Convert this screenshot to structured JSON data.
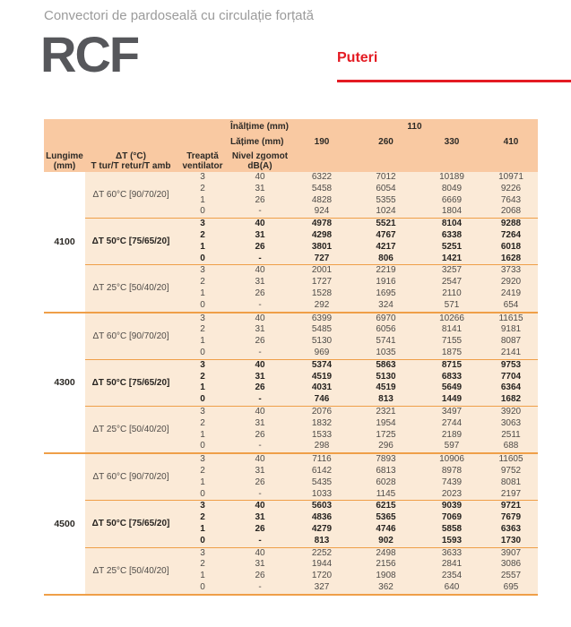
{
  "page": {
    "subtitle": "Convectori de pardoseală cu circulație forțată",
    "product": "RCF",
    "section_label": "Puteri"
  },
  "colors": {
    "accent_red": "#e41b23",
    "header_peach": "#f9c9a2",
    "body_cream": "#fbead7",
    "line_orange": "#ef9f48",
    "title_gray": "#56575b"
  },
  "table": {
    "height_label": "Înălțime (mm)",
    "height_value": "110",
    "width_label": "Lățime (mm)",
    "width_values": [
      "190",
      "260",
      "330",
      "410"
    ],
    "col_headers": {
      "length_line1": "Lungime",
      "length_line2": "(mm)",
      "dt_line1": "ΔT (°C)",
      "dt_line2": "T tur/T retur/T amb",
      "fan_line1": "Treaptă",
      "fan_line2": "ventilator",
      "noise_line1": "Nivel zgomot",
      "noise_line2": "dB(A)"
    },
    "groups": [
      {
        "length": "4100",
        "sections": [
          {
            "label": "ΔT 60°C [90/70/20]",
            "bold": false,
            "rows": [
              {
                "fan": "3",
                "noise": "40",
                "values": [
                  "6322",
                  "7012",
                  "10189",
                  "10971"
                ]
              },
              {
                "fan": "2",
                "noise": "31",
                "values": [
                  "5458",
                  "6054",
                  "8049",
                  "9226"
                ]
              },
              {
                "fan": "1",
                "noise": "26",
                "values": [
                  "4828",
                  "5355",
                  "6669",
                  "7643"
                ]
              },
              {
                "fan": "0",
                "noise": "-",
                "values": [
                  "924",
                  "1024",
                  "1804",
                  "2068"
                ]
              }
            ]
          },
          {
            "label": "ΔT 50°C [75/65/20]",
            "bold": true,
            "rows": [
              {
                "fan": "3",
                "noise": "40",
                "values": [
                  "4978",
                  "5521",
                  "8104",
                  "9288"
                ]
              },
              {
                "fan": "2",
                "noise": "31",
                "values": [
                  "4298",
                  "4767",
                  "6338",
                  "7264"
                ]
              },
              {
                "fan": "1",
                "noise": "26",
                "values": [
                  "3801",
                  "4217",
                  "5251",
                  "6018"
                ]
              },
              {
                "fan": "0",
                "noise": "-",
                "values": [
                  "727",
                  "806",
                  "1421",
                  "1628"
                ]
              }
            ]
          },
          {
            "label": "ΔT 25°C [50/40/20]",
            "bold": false,
            "rows": [
              {
                "fan": "3",
                "noise": "40",
                "values": [
                  "2001",
                  "2219",
                  "3257",
                  "3733"
                ]
              },
              {
                "fan": "2",
                "noise": "31",
                "values": [
                  "1727",
                  "1916",
                  "2547",
                  "2920"
                ]
              },
              {
                "fan": "1",
                "noise": "26",
                "values": [
                  "1528",
                  "1695",
                  "2110",
                  "2419"
                ]
              },
              {
                "fan": "0",
                "noise": "-",
                "values": [
                  "292",
                  "324",
                  "571",
                  "654"
                ]
              }
            ]
          }
        ]
      },
      {
        "length": "4300",
        "sections": [
          {
            "label": "ΔT 60°C [90/70/20]",
            "bold": false,
            "rows": [
              {
                "fan": "3",
                "noise": "40",
                "values": [
                  "6399",
                  "6970",
                  "10266",
                  "11615"
                ]
              },
              {
                "fan": "2",
                "noise": "31",
                "values": [
                  "5485",
                  "6056",
                  "8141",
                  "9181"
                ]
              },
              {
                "fan": "1",
                "noise": "26",
                "values": [
                  "5130",
                  "5741",
                  "7155",
                  "8087"
                ]
              },
              {
                "fan": "0",
                "noise": "-",
                "values": [
                  "969",
                  "1035",
                  "1875",
                  "2141"
                ]
              }
            ]
          },
          {
            "label": "ΔT 50°C [75/65/20]",
            "bold": true,
            "rows": [
              {
                "fan": "3",
                "noise": "40",
                "values": [
                  "5374",
                  "5863",
                  "8715",
                  "9753"
                ]
              },
              {
                "fan": "2",
                "noise": "31",
                "values": [
                  "4519",
                  "5130",
                  "6833",
                  "7704"
                ]
              },
              {
                "fan": "1",
                "noise": "26",
                "values": [
                  "4031",
                  "4519",
                  "5649",
                  "6364"
                ]
              },
              {
                "fan": "0",
                "noise": "-",
                "values": [
                  "746",
                  "813",
                  "1449",
                  "1682"
                ]
              }
            ]
          },
          {
            "label": "ΔT 25°C [50/40/20]",
            "bold": false,
            "rows": [
              {
                "fan": "3",
                "noise": "40",
                "values": [
                  "2076",
                  "2321",
                  "3497",
                  "3920"
                ]
              },
              {
                "fan": "2",
                "noise": "31",
                "values": [
                  "1832",
                  "1954",
                  "2744",
                  "3063"
                ]
              },
              {
                "fan": "1",
                "noise": "26",
                "values": [
                  "1533",
                  "1725",
                  "2189",
                  "2511"
                ]
              },
              {
                "fan": "0",
                "noise": "-",
                "values": [
                  "298",
                  "296",
                  "597",
                  "688"
                ]
              }
            ]
          }
        ]
      },
      {
        "length": "4500",
        "sections": [
          {
            "label": "ΔT 60°C [90/70/20]",
            "bold": false,
            "rows": [
              {
                "fan": "3",
                "noise": "40",
                "values": [
                  "7116",
                  "7893",
                  "10906",
                  "11605"
                ]
              },
              {
                "fan": "2",
                "noise": "31",
                "values": [
                  "6142",
                  "6813",
                  "8978",
                  "9752"
                ]
              },
              {
                "fan": "1",
                "noise": "26",
                "values": [
                  "5435",
                  "6028",
                  "7439",
                  "8081"
                ]
              },
              {
                "fan": "0",
                "noise": "-",
                "values": [
                  "1033",
                  "1145",
                  "2023",
                  "2197"
                ]
              }
            ]
          },
          {
            "label": "ΔT 50°C [75/65/20]",
            "bold": true,
            "rows": [
              {
                "fan": "3",
                "noise": "40",
                "values": [
                  "5603",
                  "6215",
                  "9039",
                  "9721"
                ]
              },
              {
                "fan": "2",
                "noise": "31",
                "values": [
                  "4836",
                  "5365",
                  "7069",
                  "7679"
                ]
              },
              {
                "fan": "1",
                "noise": "26",
                "values": [
                  "4279",
                  "4746",
                  "5858",
                  "6363"
                ]
              },
              {
                "fan": "0",
                "noise": "-",
                "values": [
                  "813",
                  "902",
                  "1593",
                  "1730"
                ]
              }
            ]
          },
          {
            "label": "ΔT 25°C [50/40/20]",
            "bold": false,
            "rows": [
              {
                "fan": "3",
                "noise": "40",
                "values": [
                  "2252",
                  "2498",
                  "3633",
                  "3907"
                ]
              },
              {
                "fan": "2",
                "noise": "31",
                "values": [
                  "1944",
                  "2156",
                  "2841",
                  "3086"
                ]
              },
              {
                "fan": "1",
                "noise": "26",
                "values": [
                  "1720",
                  "1908",
                  "2354",
                  "2557"
                ]
              },
              {
                "fan": "0",
                "noise": "-",
                "values": [
                  "327",
                  "362",
                  "640",
                  "695"
                ]
              }
            ]
          }
        ]
      }
    ]
  }
}
